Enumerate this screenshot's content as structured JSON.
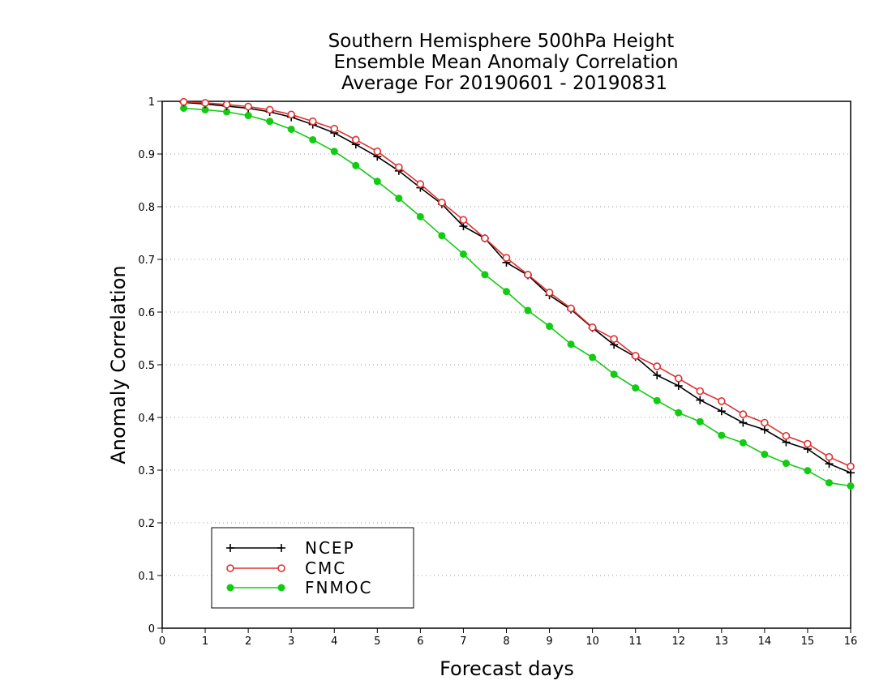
{
  "chart_data": {
    "type": "line",
    "title_lines": [
      "Southern Hemisphere 500hPa Height",
      "Ensemble Mean Anomaly Correlation",
      "Average For 20190601 - 20190831"
    ],
    "xlabel": "Forecast days",
    "ylabel": "Anomaly Correlation",
    "xlim": [
      0,
      16
    ],
    "ylim": [
      0,
      1
    ],
    "x_ticks": [
      "0",
      "1",
      "2",
      "3",
      "4",
      "5",
      "6",
      "7",
      "8",
      "9",
      "10",
      "11",
      "12",
      "13",
      "14",
      "15",
      "16"
    ],
    "y_ticks": [
      "0",
      "0.1",
      "0.2",
      "0.3",
      "0.4",
      "0.5",
      "0.6",
      "0.7",
      "0.8",
      "0.9",
      "1"
    ],
    "grid": "horizontal dotted",
    "legend_position": "bottom-left",
    "x": [
      0.5,
      1,
      1.5,
      2,
      2.5,
      3,
      3.5,
      4,
      4.5,
      5,
      5.5,
      6,
      6.5,
      7,
      7.5,
      8,
      8.5,
      9,
      9.5,
      10,
      10.5,
      11,
      11.5,
      12,
      12.5,
      13,
      13.5,
      14,
      14.5,
      15,
      15.5,
      16
    ],
    "series": [
      {
        "name": "NCEP",
        "color": "#000000",
        "marker": "plus",
        "values": [
          0.998,
          0.995,
          0.991,
          0.987,
          0.98,
          0.97,
          0.956,
          0.94,
          0.918,
          0.895,
          0.868,
          0.836,
          0.805,
          0.763,
          0.74,
          0.694,
          0.67,
          0.632,
          0.605,
          0.57,
          0.538,
          0.515,
          0.48,
          0.46,
          0.433,
          0.412,
          0.39,
          0.377,
          0.353,
          0.34,
          0.312,
          0.295
        ]
      },
      {
        "name": "CMC",
        "color": "#e03030",
        "marker": "open-circle",
        "values": [
          0.999,
          0.997,
          0.994,
          0.99,
          0.984,
          0.975,
          0.962,
          0.948,
          0.927,
          0.905,
          0.875,
          0.843,
          0.808,
          0.775,
          0.74,
          0.703,
          0.671,
          0.637,
          0.607,
          0.571,
          0.549,
          0.517,
          0.497,
          0.474,
          0.45,
          0.431,
          0.406,
          0.39,
          0.365,
          0.35,
          0.325,
          0.307
        ]
      },
      {
        "name": "FNMOC",
        "color": "#11cc11",
        "marker": "filled-circle",
        "values": [
          0.987,
          0.984,
          0.98,
          0.973,
          0.962,
          0.947,
          0.927,
          0.905,
          0.878,
          0.848,
          0.816,
          0.781,
          0.745,
          0.71,
          0.671,
          0.639,
          0.603,
          0.573,
          0.539,
          0.514,
          0.482,
          0.456,
          0.432,
          0.409,
          0.392,
          0.366,
          0.352,
          0.33,
          0.313,
          0.299,
          0.276,
          0.27
        ]
      }
    ]
  }
}
